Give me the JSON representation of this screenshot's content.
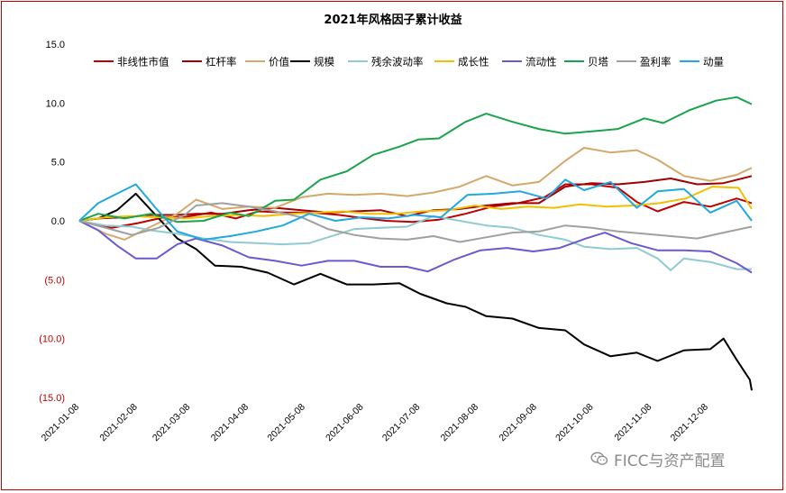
{
  "chart_data": {
    "type": "line",
    "title": "2021年风格因子累计收益",
    "xlabel": "",
    "ylabel": "",
    "ylim": [
      -15,
      15
    ],
    "yticks": [
      15,
      10,
      5,
      0,
      -5,
      -10,
      -15
    ],
    "ytick_labels": [
      "15.0",
      "10.0",
      "5.0",
      "0.0",
      "(5.0)",
      "(10.0)",
      "(15.0)"
    ],
    "negative_tick_color": "#c00000",
    "x_tick_labels": [
      "2021-01-08",
      "2021-02-08",
      "2021-03-08",
      "2021-04-08",
      "2021-05-08",
      "2021-06-08",
      "2021-07-08",
      "2021-08-08",
      "2021-09-08",
      "2021-10-08",
      "2021-11-08",
      "2021-12-08"
    ],
    "x_range": [
      "2021-01-08",
      "2021-12-31"
    ],
    "grid": false,
    "legend_position": "top",
    "series": [
      {
        "name": "非线性市值",
        "color": "#c00000",
        "values": [
          [
            0,
            0
          ],
          [
            8,
            -0.3
          ],
          [
            17,
            -0.6
          ],
          [
            31,
            -0.2
          ],
          [
            45,
            0.3
          ],
          [
            55,
            0.3
          ],
          [
            70,
            0.7
          ],
          [
            83,
            0.2
          ],
          [
            95,
            0.8
          ],
          [
            110,
            0.7
          ],
          [
            124,
            0.7
          ],
          [
            138,
            0.5
          ],
          [
            152,
            0.2
          ],
          [
            163,
            0.0
          ],
          [
            177,
            -0.1
          ],
          [
            191,
            0.1
          ],
          [
            205,
            0.6
          ],
          [
            219,
            1.2
          ],
          [
            233,
            1.5
          ],
          [
            247,
            2.0
          ],
          [
            258,
            3.1
          ],
          [
            272,
            3.1
          ],
          [
            286,
            2.8
          ],
          [
            296,
            1.6
          ],
          [
            307,
            0.8
          ],
          [
            321,
            1.6
          ],
          [
            335,
            1.2
          ],
          [
            349,
            1.9
          ],
          [
            357,
            1.5
          ]
        ]
      },
      {
        "name": "杠杆率",
        "color": "#a00000",
        "values": [
          [
            0,
            0
          ],
          [
            10,
            0.2
          ],
          [
            24,
            0.3
          ],
          [
            38,
            0.5
          ],
          [
            52,
            0.5
          ],
          [
            62,
            0.6
          ],
          [
            76,
            0.6
          ],
          [
            90,
            0.9
          ],
          [
            104,
            1.1
          ],
          [
            118,
            0.9
          ],
          [
            132,
            0.7
          ],
          [
            146,
            0.8
          ],
          [
            160,
            0.9
          ],
          [
            174,
            0.4
          ],
          [
            188,
            0.9
          ],
          [
            202,
            1.0
          ],
          [
            216,
            1.3
          ],
          [
            230,
            1.5
          ],
          [
            244,
            1.5
          ],
          [
            258,
            2.9
          ],
          [
            272,
            3.2
          ],
          [
            286,
            3.1
          ],
          [
            300,
            3.3
          ],
          [
            314,
            3.6
          ],
          [
            328,
            3.1
          ],
          [
            342,
            3.2
          ],
          [
            357,
            3.8
          ]
        ]
      },
      {
        "name": "价值",
        "color": "#d4a86a",
        "values": [
          [
            0,
            0
          ],
          [
            14,
            -1.1
          ],
          [
            24,
            -1.6
          ],
          [
            38,
            -0.5
          ],
          [
            52,
            0.6
          ],
          [
            62,
            1.8
          ],
          [
            76,
            1.0
          ],
          [
            90,
            1.2
          ],
          [
            104,
            1.1
          ],
          [
            118,
            2.0
          ],
          [
            132,
            2.3
          ],
          [
            146,
            2.2
          ],
          [
            160,
            2.3
          ],
          [
            174,
            2.1
          ],
          [
            188,
            2.4
          ],
          [
            202,
            2.9
          ],
          [
            216,
            3.8
          ],
          [
            230,
            3.0
          ],
          [
            244,
            3.3
          ],
          [
            258,
            5.1
          ],
          [
            268,
            6.2
          ],
          [
            282,
            5.8
          ],
          [
            296,
            6.0
          ],
          [
            307,
            5.2
          ],
          [
            321,
            3.8
          ],
          [
            335,
            3.4
          ],
          [
            349,
            3.9
          ],
          [
            357,
            4.5
          ]
        ]
      },
      {
        "name": "规模",
        "color": "#000000",
        "values": [
          [
            0,
            0
          ],
          [
            10,
            0.2
          ],
          [
            20,
            0.9
          ],
          [
            30,
            2.3
          ],
          [
            41,
            0.4
          ],
          [
            52,
            -1.5
          ],
          [
            62,
            -2.4
          ],
          [
            72,
            -3.8
          ],
          [
            86,
            -3.9
          ],
          [
            100,
            -4.4
          ],
          [
            114,
            -5.4
          ],
          [
            128,
            -4.5
          ],
          [
            142,
            -5.4
          ],
          [
            156,
            -5.4
          ],
          [
            170,
            -5.3
          ],
          [
            181,
            -6.2
          ],
          [
            195,
            -7.0
          ],
          [
            205,
            -7.3
          ],
          [
            216,
            -8.1
          ],
          [
            230,
            -8.3
          ],
          [
            244,
            -9.1
          ],
          [
            258,
            -9.3
          ],
          [
            268,
            -10.5
          ],
          [
            282,
            -11.5
          ],
          [
            296,
            -11.2
          ],
          [
            307,
            -11.9
          ],
          [
            321,
            -11.0
          ],
          [
            335,
            -10.9
          ],
          [
            342,
            -10.0
          ],
          [
            349,
            -11.8
          ],
          [
            356,
            -13.5
          ],
          [
            357,
            -14.4
          ]
        ]
      },
      {
        "name": "残余波动率",
        "color": "#8fcbd1",
        "values": [
          [
            0,
            0
          ],
          [
            14,
            -0.4
          ],
          [
            28,
            -0.5
          ],
          [
            38,
            -0.8
          ],
          [
            52,
            -1.1
          ],
          [
            66,
            -1.5
          ],
          [
            80,
            -1.8
          ],
          [
            94,
            -1.9
          ],
          [
            108,
            -2.0
          ],
          [
            122,
            -1.9
          ],
          [
            136,
            -1.2
          ],
          [
            146,
            -0.7
          ],
          [
            160,
            -0.6
          ],
          [
            174,
            -0.5
          ],
          [
            188,
            0.4
          ],
          [
            202,
            0.0
          ],
          [
            216,
            -0.4
          ],
          [
            230,
            -0.6
          ],
          [
            244,
            -1.2
          ],
          [
            258,
            -1.6
          ],
          [
            268,
            -2.2
          ],
          [
            282,
            -2.4
          ],
          [
            296,
            -2.3
          ],
          [
            307,
            -3.2
          ],
          [
            314,
            -4.2
          ],
          [
            321,
            -3.2
          ],
          [
            335,
            -3.5
          ],
          [
            349,
            -4.1
          ],
          [
            357,
            -4.1
          ]
        ]
      },
      {
        "name": "成长性",
        "color": "#f0c000",
        "values": [
          [
            0,
            0
          ],
          [
            14,
            0.3
          ],
          [
            28,
            0.4
          ],
          [
            42,
            0.3
          ],
          [
            56,
            0.2
          ],
          [
            70,
            0.4
          ],
          [
            84,
            0.5
          ],
          [
            98,
            0.4
          ],
          [
            112,
            0.6
          ],
          [
            126,
            0.7
          ],
          [
            140,
            0.8
          ],
          [
            154,
            0.6
          ],
          [
            168,
            0.6
          ],
          [
            182,
            0.8
          ],
          [
            196,
            0.9
          ],
          [
            210,
            1.3
          ],
          [
            224,
            1.0
          ],
          [
            238,
            1.2
          ],
          [
            252,
            1.1
          ],
          [
            266,
            1.4
          ],
          [
            280,
            1.2
          ],
          [
            294,
            1.3
          ],
          [
            308,
            1.5
          ],
          [
            322,
            1.9
          ],
          [
            336,
            2.9
          ],
          [
            350,
            2.8
          ],
          [
            357,
            1.0
          ]
        ]
      },
      {
        "name": "流动性",
        "color": "#6a5acd",
        "values": [
          [
            0,
            0
          ],
          [
            10,
            -0.8
          ],
          [
            20,
            -2.1
          ],
          [
            30,
            -3.2
          ],
          [
            41,
            -3.2
          ],
          [
            52,
            -2.0
          ],
          [
            62,
            -1.5
          ],
          [
            76,
            -2.1
          ],
          [
            90,
            -3.1
          ],
          [
            104,
            -3.4
          ],
          [
            118,
            -3.8
          ],
          [
            132,
            -3.4
          ],
          [
            146,
            -3.4
          ],
          [
            160,
            -3.9
          ],
          [
            174,
            -3.9
          ],
          [
            185,
            -4.3
          ],
          [
            199,
            -3.3
          ],
          [
            213,
            -2.5
          ],
          [
            227,
            -2.3
          ],
          [
            241,
            -2.6
          ],
          [
            255,
            -2.3
          ],
          [
            269,
            -1.5
          ],
          [
            279,
            -1.0
          ],
          [
            293,
            -1.9
          ],
          [
            307,
            -2.5
          ],
          [
            321,
            -2.5
          ],
          [
            335,
            -2.6
          ],
          [
            349,
            -3.6
          ],
          [
            357,
            -4.4
          ]
        ]
      },
      {
        "name": "贝塔",
        "color": "#1aa34a",
        "values": [
          [
            0,
            0
          ],
          [
            10,
            0.6
          ],
          [
            24,
            0.2
          ],
          [
            38,
            0.6
          ],
          [
            52,
            -0.1
          ],
          [
            66,
            0.0
          ],
          [
            80,
            0.7
          ],
          [
            90,
            0.4
          ],
          [
            104,
            1.7
          ],
          [
            114,
            1.8
          ],
          [
            128,
            3.5
          ],
          [
            142,
            4.2
          ],
          [
            156,
            5.6
          ],
          [
            170,
            6.3
          ],
          [
            180,
            6.9
          ],
          [
            191,
            7.0
          ],
          [
            205,
            8.4
          ],
          [
            216,
            9.1
          ],
          [
            230,
            8.4
          ],
          [
            244,
            7.8
          ],
          [
            258,
            7.4
          ],
          [
            272,
            7.6
          ],
          [
            286,
            7.8
          ],
          [
            300,
            8.7
          ],
          [
            310,
            8.3
          ],
          [
            324,
            9.4
          ],
          [
            338,
            10.2
          ],
          [
            349,
            10.5
          ],
          [
            357,
            9.9
          ]
        ]
      },
      {
        "name": "盈利率",
        "color": "#a0a0a0",
        "values": [
          [
            0,
            0
          ],
          [
            14,
            -0.6
          ],
          [
            28,
            -1.2
          ],
          [
            42,
            -0.6
          ],
          [
            56,
            0.5
          ],
          [
            62,
            1.3
          ],
          [
            76,
            1.5
          ],
          [
            90,
            1.2
          ],
          [
            104,
            0.8
          ],
          [
            118,
            0.3
          ],
          [
            132,
            -0.7
          ],
          [
            146,
            -1.2
          ],
          [
            160,
            -1.5
          ],
          [
            174,
            -1.6
          ],
          [
            188,
            -1.3
          ],
          [
            202,
            -1.8
          ],
          [
            216,
            -1.4
          ],
          [
            230,
            -1.0
          ],
          [
            244,
            -0.9
          ],
          [
            258,
            -0.4
          ],
          [
            272,
            -0.6
          ],
          [
            286,
            -0.9
          ],
          [
            300,
            -1.1
          ],
          [
            314,
            -1.3
          ],
          [
            328,
            -1.5
          ],
          [
            342,
            -1.0
          ],
          [
            357,
            -0.5
          ]
        ]
      },
      {
        "name": "动量",
        "color": "#1fa9e0",
        "values": [
          [
            0,
            0
          ],
          [
            10,
            1.5
          ],
          [
            20,
            2.3
          ],
          [
            30,
            3.1
          ],
          [
            41,
            1.0
          ],
          [
            52,
            -0.9
          ],
          [
            66,
            -1.6
          ],
          [
            80,
            -1.3
          ],
          [
            94,
            -0.9
          ],
          [
            108,
            -0.4
          ],
          [
            122,
            0.6
          ],
          [
            136,
            0.0
          ],
          [
            150,
            0.3
          ],
          [
            164,
            0.2
          ],
          [
            178,
            0.5
          ],
          [
            192,
            0.3
          ],
          [
            206,
            2.2
          ],
          [
            220,
            2.3
          ],
          [
            234,
            2.5
          ],
          [
            248,
            1.9
          ],
          [
            258,
            3.5
          ],
          [
            268,
            2.6
          ],
          [
            282,
            3.3
          ],
          [
            296,
            1.1
          ],
          [
            307,
            2.5
          ],
          [
            321,
            2.7
          ],
          [
            335,
            0.7
          ],
          [
            349,
            1.7
          ],
          [
            357,
            0.0
          ]
        ]
      }
    ]
  },
  "watermark": {
    "text": "FICC与资产配置",
    "icon": "wechat-icon"
  }
}
